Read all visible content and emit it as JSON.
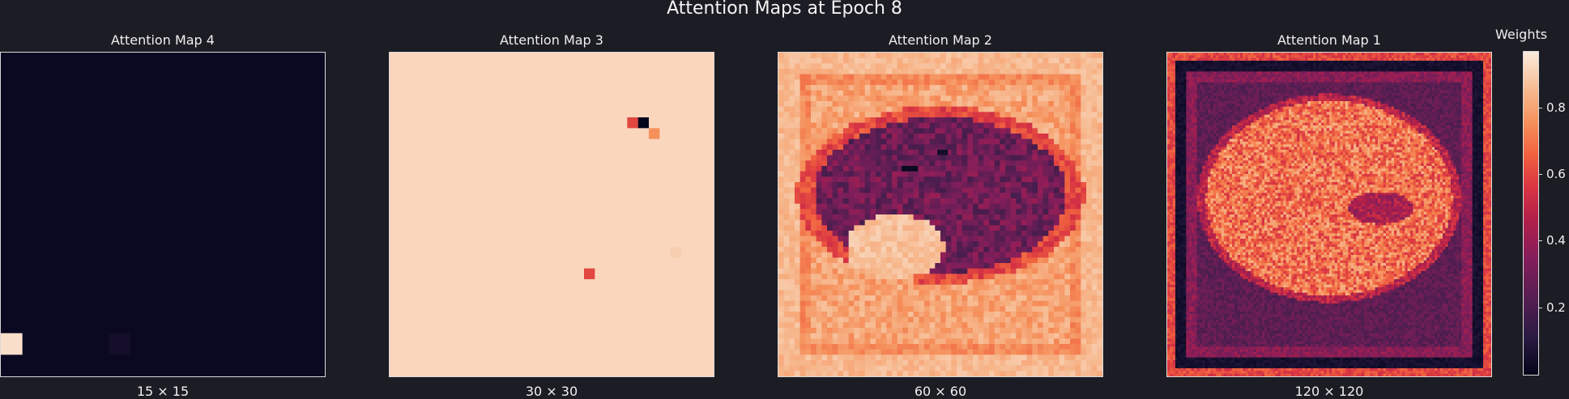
{
  "figure_title": "Attention Maps at Epoch 8",
  "colorbar": {
    "label": "Weights",
    "ticks": [
      "0.2",
      "0.4",
      "0.6",
      "0.8"
    ],
    "tick_values": [
      0.2,
      0.4,
      0.6,
      0.8
    ],
    "range": [
      0.0,
      0.97
    ],
    "colormap": "rocket"
  },
  "chart_data": [
    {
      "type": "heatmap",
      "title": "Attention Map 4",
      "xlabel": "15 × 15",
      "grid_size": 15,
      "background_value": 0.02,
      "highlight_cells": [
        {
          "row": 13,
          "col": 0,
          "value": 0.97
        },
        {
          "row": 13,
          "col": 5,
          "value": 0.05
        }
      ]
    },
    {
      "type": "heatmap",
      "title": "Attention Map 3",
      "xlabel": "30 × 30",
      "grid_size": 30,
      "background_value": 0.95,
      "highlight_cells": [
        {
          "row": 6,
          "col": 22,
          "value": 0.62
        },
        {
          "row": 6,
          "col": 23,
          "value": 0.0
        },
        {
          "row": 7,
          "col": 24,
          "value": 0.78
        },
        {
          "row": 20,
          "col": 18,
          "value": 0.62
        },
        {
          "row": 18,
          "col": 26,
          "value": 0.93
        }
      ]
    },
    {
      "type": "heatmap",
      "title": "Attention Map 2",
      "xlabel": "60 × 60",
      "grid_size": 60,
      "description_values": {
        "border": 0.85,
        "mass": 0.35,
        "inner_bright": 0.92
      }
    },
    {
      "type": "heatmap",
      "title": "Attention Map 1",
      "xlabel": "120 × 120",
      "grid_size": 120,
      "description_values": {
        "frame": 0.15,
        "mass": 0.78,
        "gap": 0.3
      }
    }
  ]
}
